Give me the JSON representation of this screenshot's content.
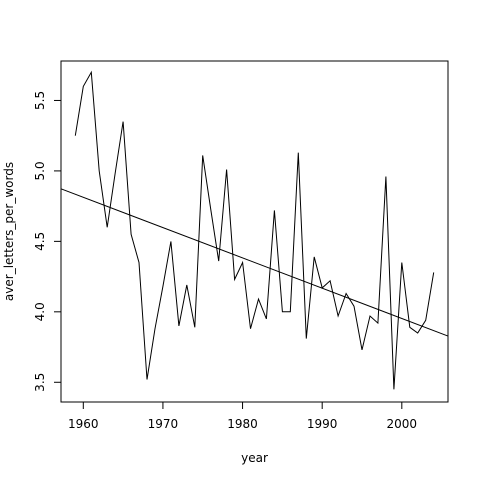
{
  "chart_data": {
    "type": "line",
    "title": "",
    "xlabel": "year",
    "ylabel": "aver_letters_per_words",
    "xlim": [
      1957.2,
      2005.8
    ],
    "ylim": [
      3.36,
      5.78
    ],
    "x_ticks": [
      1960,
      1970,
      1980,
      1990,
      2000
    ],
    "x_tick_labels": [
      "1960",
      "1970",
      "1980",
      "1990",
      "2000"
    ],
    "y_ticks": [
      3.5,
      4.0,
      4.5,
      5.0,
      5.5
    ],
    "y_tick_labels": [
      "3.5",
      "4.0",
      "4.5",
      "5.0",
      "5.5"
    ],
    "grid": false,
    "legend": "none",
    "series": [
      {
        "x": [
          1959,
          1960,
          1961,
          1962,
          1963,
          1964,
          1965,
          1966,
          1967,
          1968,
          1969,
          1970,
          1971,
          1972,
          1973,
          1974,
          1975,
          1976,
          1977,
          1978,
          1979,
          1980,
          1981,
          1982,
          1983,
          1984,
          1985,
          1986,
          1987,
          1988,
          1989,
          1990,
          1991,
          1992,
          1993,
          1994,
          1995,
          1996,
          1997,
          1998,
          1999,
          2000,
          2001,
          2002,
          2003,
          2004
        ],
        "values": [
          5.25,
          5.6,
          5.7,
          5.0,
          4.6,
          4.98,
          5.35,
          4.55,
          4.35,
          3.52,
          3.88,
          4.18,
          4.5,
          3.9,
          4.19,
          3.89,
          5.11,
          4.73,
          4.36,
          5.01,
          4.23,
          4.35,
          3.88,
          4.09,
          3.95,
          4.72,
          4.0,
          4.0,
          5.13,
          3.81,
          4.39,
          4.17,
          4.22,
          3.97,
          4.13,
          4.04,
          3.73,
          3.97,
          3.92,
          4.96,
          3.45,
          4.35,
          3.89,
          3.85,
          3.94,
          4.28
        ]
      }
    ],
    "trend_line": {
      "x": [
        1957.2,
        2005.8
      ],
      "values": [
        4.873,
        3.828
      ]
    },
    "colors": {
      "line": "#000000",
      "background": "#ffffff",
      "frame": "#000000"
    }
  }
}
